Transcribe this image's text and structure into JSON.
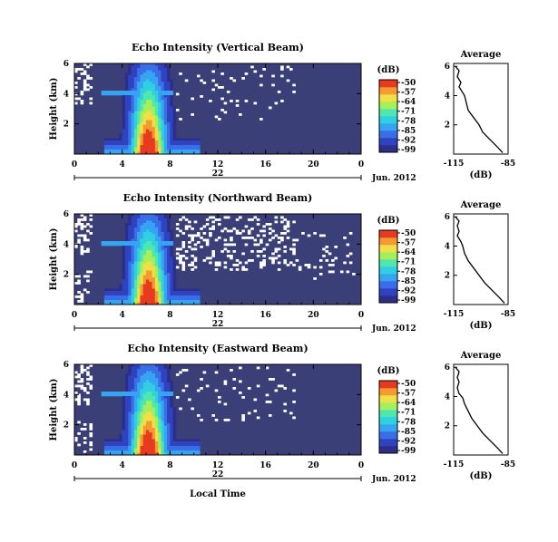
{
  "colors": {
    "background": "#3b3f78",
    "missing": "#ffffff",
    "colormap": [
      "#2b2f8a",
      "#2f43c0",
      "#3a6ee8",
      "#36a4f0",
      "#2fd0e0",
      "#4fe6b0",
      "#a6ee5a",
      "#f0e048",
      "#f59a30",
      "#e83a20"
    ]
  },
  "shared": {
    "x_ticks": [
      "0",
      "4",
      "8",
      "12",
      "16",
      "20",
      "0"
    ],
    "date_tick": "22",
    "date_label": "Jun. 2012",
    "xlabel": "Local Time"
  },
  "chart_data": [
    {
      "type": "heatmap",
      "title": "Echo Intensity (Vertical Beam)",
      "ylabel": "Height (km)",
      "x_range_hours": [
        0,
        24
      ],
      "y_range_km": [
        0,
        6
      ],
      "y_ticks": [
        "2",
        "4",
        "6"
      ],
      "colorbar": {
        "label": "(dB)",
        "ticks": [
          "-50",
          "-57",
          "-64",
          "-71",
          "-78",
          "-85",
          "-92",
          "-99"
        ]
      },
      "profile": {
        "title": "Average",
        "xlabel": "(dB)",
        "x_ticks": [
          "-115",
          "-85"
        ],
        "y_ticks": [
          "2",
          "4",
          "6"
        ],
        "xlim": [
          -115,
          -85
        ],
        "ylim": [
          0,
          6.2
        ],
        "points": [
          [
            -88,
            0.1
          ],
          [
            -91,
            0.5
          ],
          [
            -95,
            1.0
          ],
          [
            -99,
            1.5
          ],
          [
            -101,
            2.0
          ],
          [
            -104,
            2.5
          ],
          [
            -107,
            3.0
          ],
          [
            -108,
            3.5
          ],
          [
            -109,
            4.0
          ],
          [
            -110,
            4.2
          ],
          [
            -112,
            4.6
          ],
          [
            -111,
            4.9
          ],
          [
            -113,
            5.3
          ],
          [
            -112,
            5.7
          ],
          [
            -114,
            6.0
          ]
        ]
      }
    },
    {
      "type": "heatmap",
      "title": "Echo Intensity (Northward Beam)",
      "ylabel": "Height (km)",
      "x_range_hours": [
        0,
        24
      ],
      "y_range_km": [
        0,
        6
      ],
      "y_ticks": [
        "2",
        "4",
        "6"
      ],
      "colorbar": {
        "label": "(dB)",
        "ticks": [
          "-50",
          "-57",
          "-64",
          "-71",
          "-78",
          "-85",
          "-92",
          "-99"
        ]
      },
      "profile": {
        "title": "Average",
        "xlabel": "(dB)",
        "x_ticks": [
          "-115",
          "-85"
        ],
        "y_ticks": [
          "2",
          "4",
          "6"
        ],
        "xlim": [
          -115,
          -85
        ],
        "ylim": [
          0,
          6.2
        ],
        "points": [
          [
            -87,
            0.1
          ],
          [
            -90,
            0.5
          ],
          [
            -94,
            1.0
          ],
          [
            -98,
            1.5
          ],
          [
            -101,
            2.0
          ],
          [
            -104,
            2.5
          ],
          [
            -107,
            3.0
          ],
          [
            -109,
            3.5
          ],
          [
            -110,
            4.0
          ],
          [
            -111,
            4.3
          ],
          [
            -113,
            4.7
          ],
          [
            -112,
            5.0
          ],
          [
            -113,
            5.4
          ],
          [
            -112,
            5.7
          ],
          [
            -114,
            6.0
          ]
        ]
      }
    },
    {
      "type": "heatmap",
      "title": "Echo Intensity (Eastward Beam)",
      "ylabel": "Height (km)",
      "x_range_hours": [
        0,
        24
      ],
      "y_range_km": [
        0,
        6
      ],
      "y_ticks": [
        "2",
        "4",
        "6"
      ],
      "colorbar": {
        "label": "(dB)",
        "ticks": [
          "-50",
          "-57",
          "-64",
          "-71",
          "-78",
          "-85",
          "-92",
          "-99"
        ]
      },
      "profile": {
        "title": "Average",
        "xlabel": "(dB)",
        "x_ticks": [
          "-115",
          "-85"
        ],
        "y_ticks": [
          "2",
          "4",
          "6"
        ],
        "xlim": [
          -115,
          -85
        ],
        "ylim": [
          0,
          6.2
        ],
        "points": [
          [
            -88,
            0.1
          ],
          [
            -91,
            0.5
          ],
          [
            -95,
            1.0
          ],
          [
            -99,
            1.5
          ],
          [
            -102,
            2.0
          ],
          [
            -105,
            2.5
          ],
          [
            -107,
            3.0
          ],
          [
            -109,
            3.5
          ],
          [
            -110,
            3.9
          ],
          [
            -112,
            4.2
          ],
          [
            -113,
            4.6
          ],
          [
            -112,
            5.0
          ],
          [
            -113,
            5.3
          ],
          [
            -112,
            5.7
          ],
          [
            -114,
            6.0
          ]
        ]
      }
    }
  ]
}
